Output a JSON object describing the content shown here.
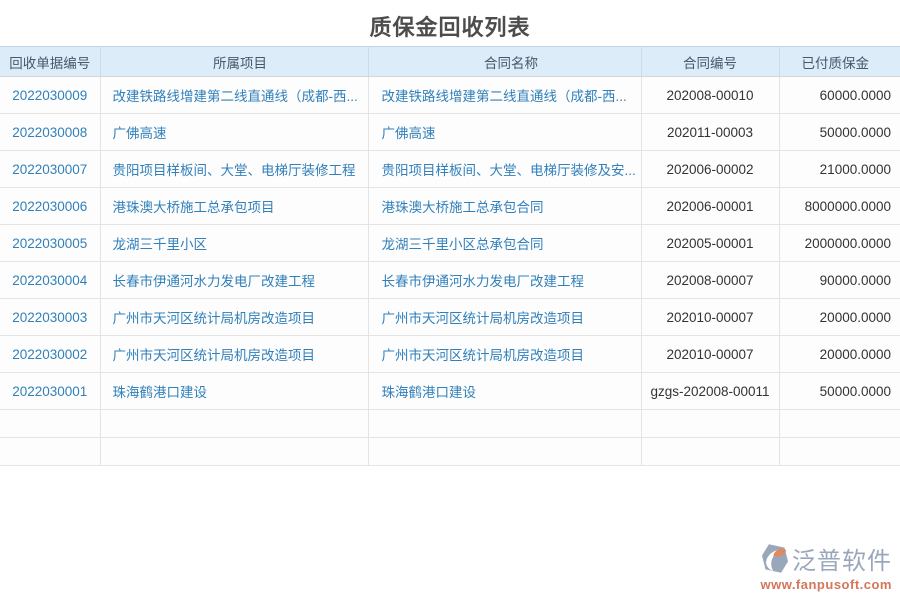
{
  "page": {
    "title": "质保金回收列表"
  },
  "colors": {
    "header_bg": "#dcecf8",
    "header_text": "#45586c",
    "link_blue": "#3180ba",
    "cell_text": "#333333",
    "border": "#e4e4e4",
    "brand_gray": "#9aa7bb",
    "brand_orange": "#d4765a"
  },
  "table": {
    "columns": [
      {
        "label": "回收单据编号"
      },
      {
        "label": "所属项目"
      },
      {
        "label": "合同名称"
      },
      {
        "label": "合同编号"
      },
      {
        "label": "已付质保金"
      }
    ],
    "rows": [
      [
        "2022030009",
        "改建铁路线增建第二线直通线（成都-西...",
        "改建铁路线增建第二线直通线（成都-西...",
        "202008-00010",
        "60000.0000"
      ],
      [
        "2022030008",
        "广佛高速",
        "广佛高速",
        "202011-00003",
        "50000.0000"
      ],
      [
        "2022030007",
        "贵阳项目样板间、大堂、电梯厅装修工程",
        "贵阳项目样板间、大堂、电梯厅装修及安...",
        "202006-00002",
        "21000.0000"
      ],
      [
        "2022030006",
        "港珠澳大桥施工总承包项目",
        "港珠澳大桥施工总承包合同",
        "202006-00001",
        "8000000.0000"
      ],
      [
        "2022030005",
        "龙湖三千里小区",
        "龙湖三千里小区总承包合同",
        "202005-00001",
        "2000000.0000"
      ],
      [
        "2022030004",
        "长春市伊通河水力发电厂改建工程",
        "长春市伊通河水力发电厂改建工程",
        "202008-00007",
        "90000.0000"
      ],
      [
        "2022030003",
        "广州市天河区统计局机房改造项目",
        "广州市天河区统计局机房改造项目",
        "202010-00007",
        "20000.0000"
      ],
      [
        "2022030002",
        "广州市天河区统计局机房改造项目",
        "广州市天河区统计局机房改造项目",
        "202010-00007",
        "20000.0000"
      ],
      [
        "2022030001",
        "珠海鹤港口建设",
        "珠海鹤港口建设",
        "gzgs-202008-00011",
        "50000.0000"
      ]
    ],
    "empty_row_count": 2
  },
  "watermark": {
    "brand": "泛普软件",
    "url": "www.fanpusoft.com"
  }
}
